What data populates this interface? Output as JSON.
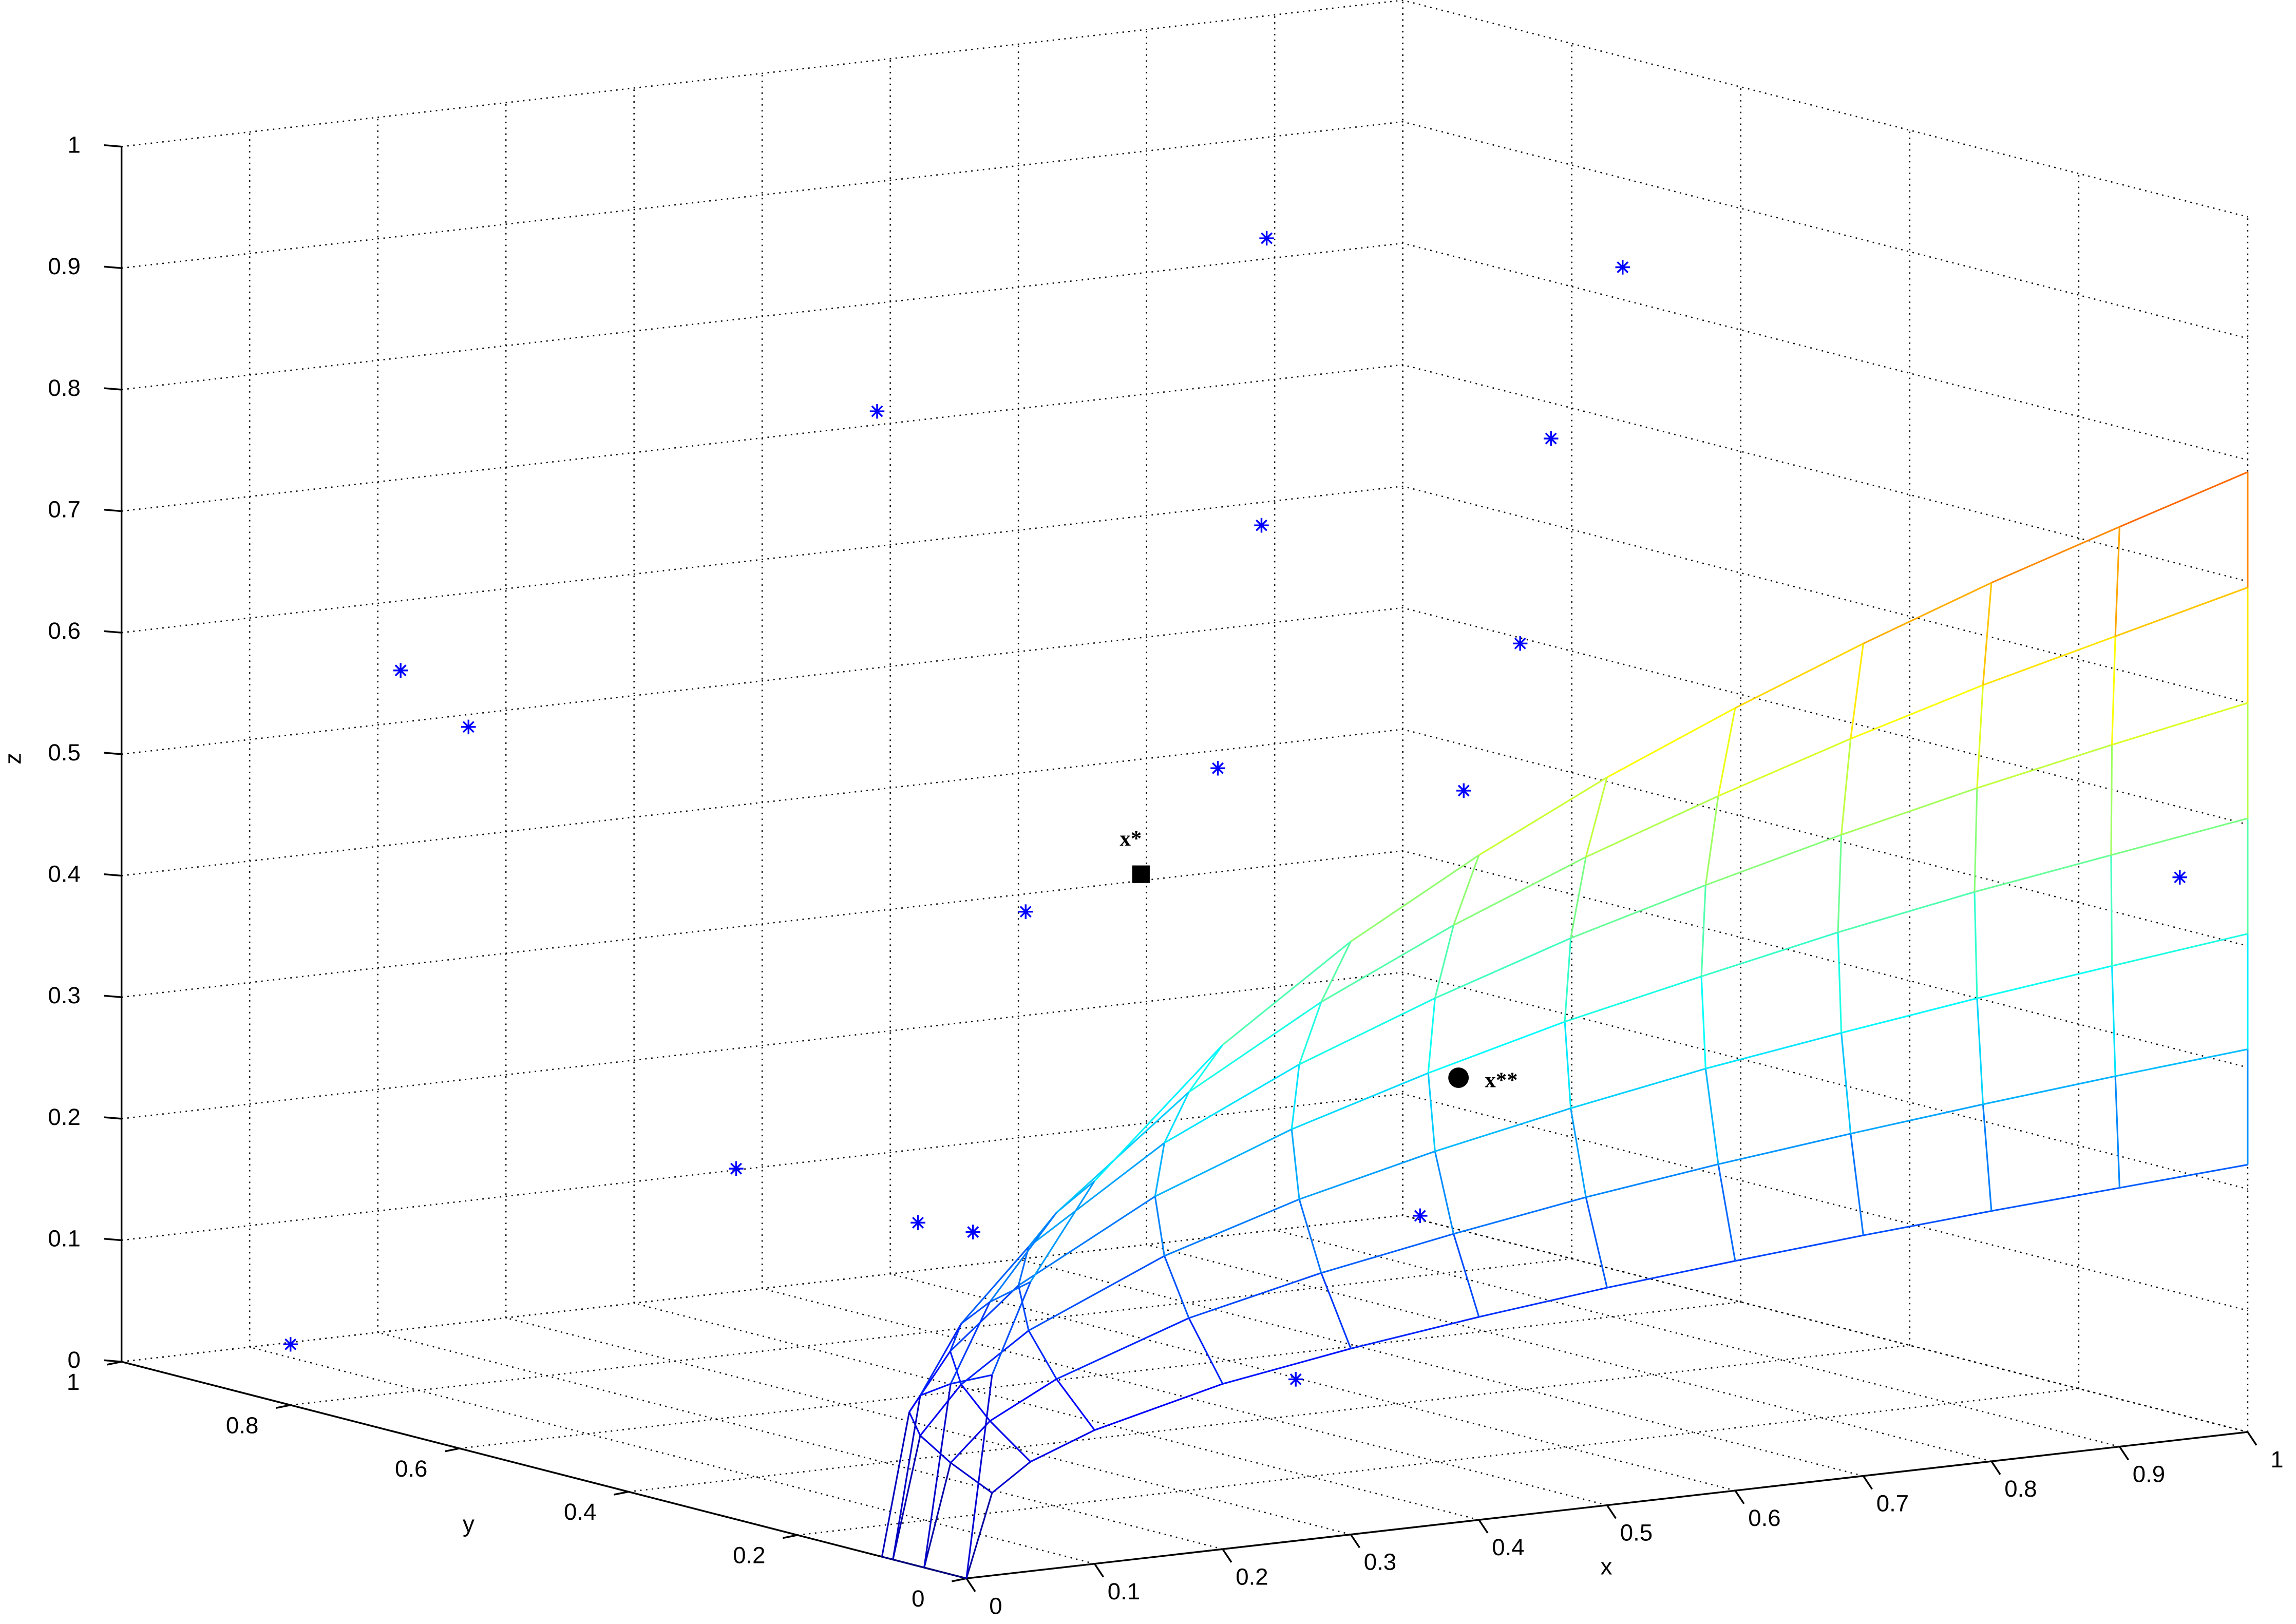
{
  "chart_data": {
    "type": "scatter3d",
    "xlabel": "x",
    "ylabel": "y",
    "zlabel": "z",
    "xlim": [
      0,
      1
    ],
    "ylim": [
      0,
      1
    ],
    "zlim": [
      0,
      1
    ],
    "xticks": [
      0,
      0.1,
      0.2,
      0.3,
      0.4,
      0.5,
      0.6,
      0.7,
      0.8,
      0.9,
      1
    ],
    "yticks": [
      0,
      0.2,
      0.4,
      0.6,
      0.8,
      1
    ],
    "zticks": [
      0,
      0.1,
      0.2,
      0.3,
      0.4,
      0.5,
      0.6,
      0.7,
      0.8,
      0.9,
      1
    ],
    "grid": true,
    "series": [
      {
        "marker": "*",
        "color": "#0000ff",
        "x": [
          0,
          0.02,
          0.04,
          0.26,
          0.63,
          0.71,
          0.72,
          0.56,
          0.63,
          0.46,
          0.52,
          0.31,
          0.15,
          0.16,
          0.17,
          0.42,
          0.29,
          0.98
        ],
        "y": [
          0.8,
          0.7,
          0.65,
          0.5,
          0.6,
          0.3,
          0.4,
          0.5,
          0.3,
          0.4,
          0.2,
          0.4,
          0.5,
          0.3,
          0.25,
          0.1,
          0.05,
          0.05
        ],
        "z": [
          0.05,
          0.62,
          0.58,
          0.84,
          0.92,
          0.94,
          0.78,
          0.71,
          0.64,
          0.54,
          0.55,
          0.44,
          0.23,
          0.22,
          0.22,
          0.23,
          0.12,
          0.45
        ]
      }
    ],
    "points": [
      {
        "label": "x*",
        "marker": "square",
        "color": "#000000",
        "x": 0.4,
        "y": 0.4,
        "z": 0.46
      },
      {
        "label": "x**",
        "marker": "circle",
        "color": "#000000",
        "x": 0.45,
        "y": 0.1,
        "z": 0.34
      }
    ],
    "surface": {
      "colormap": "jet",
      "x": [
        0,
        0.02,
        0.05,
        0.1,
        0.2,
        0.3,
        0.4,
        0.5,
        0.6,
        0.7,
        0.8,
        0.9,
        1
      ],
      "y": [
        [
          0,
          0,
          0,
          0,
          0,
          0,
          0,
          0,
          0,
          0,
          0,
          0,
          0
        ],
        [
          0.05,
          0.049,
          0.048,
          0.045,
          0.04,
          0.035,
          0.03,
          0.025,
          0.02,
          0.015,
          0.01,
          0.005,
          0
        ],
        [
          0.087,
          0.085,
          0.082,
          0.078,
          0.069,
          0.061,
          0.052,
          0.043,
          0.035,
          0.026,
          0.017,
          0.009,
          0
        ],
        [
          0.1,
          0.098,
          0.095,
          0.09,
          0.08,
          0.07,
          0.06,
          0.05,
          0.04,
          0.03,
          0.02,
          0.01,
          0
        ],
        [
          0.087,
          0.085,
          0.082,
          0.078,
          0.069,
          0.061,
          0.052,
          0.043,
          0.035,
          0.026,
          0.017,
          0.009,
          0
        ],
        [
          0.05,
          0.049,
          0.048,
          0.045,
          0.04,
          0.035,
          0.03,
          0.025,
          0.02,
          0.015,
          0.01,
          0.005,
          0
        ],
        [
          0,
          0,
          0,
          0,
          0,
          0,
          0,
          0,
          0,
          0,
          0,
          0,
          0
        ]
      ],
      "z": [
        [
          0,
          0.068,
          0.09,
          0.11,
          0.136,
          0.153,
          0.167,
          0.179,
          0.189,
          0.198,
          0.206,
          0.213,
          0.22
        ],
        [
          0,
          0.084,
          0.115,
          0.144,
          0.183,
          0.209,
          0.23,
          0.249,
          0.265,
          0.279,
          0.292,
          0.304,
          0.315
        ],
        [
          0,
          0.1,
          0.139,
          0.178,
          0.229,
          0.265,
          0.294,
          0.319,
          0.341,
          0.36,
          0.378,
          0.394,
          0.41
        ],
        [
          0,
          0.117,
          0.164,
          0.213,
          0.276,
          0.321,
          0.357,
          0.389,
          0.416,
          0.442,
          0.465,
          0.485,
          0.505
        ],
        [
          0,
          0.133,
          0.189,
          0.247,
          0.322,
          0.376,
          0.42,
          0.459,
          0.492,
          0.523,
          0.551,
          0.576,
          0.6
        ],
        [
          0,
          0.149,
          0.213,
          0.281,
          0.369,
          0.432,
          0.484,
          0.529,
          0.568,
          0.604,
          0.637,
          0.666,
          0.695
        ],
        [
          0,
          0.165,
          0.238,
          0.315,
          0.415,
          0.488,
          0.547,
          0.599,
          0.644,
          0.685,
          0.723,
          0.757,
          0.79
        ]
      ]
    }
  }
}
